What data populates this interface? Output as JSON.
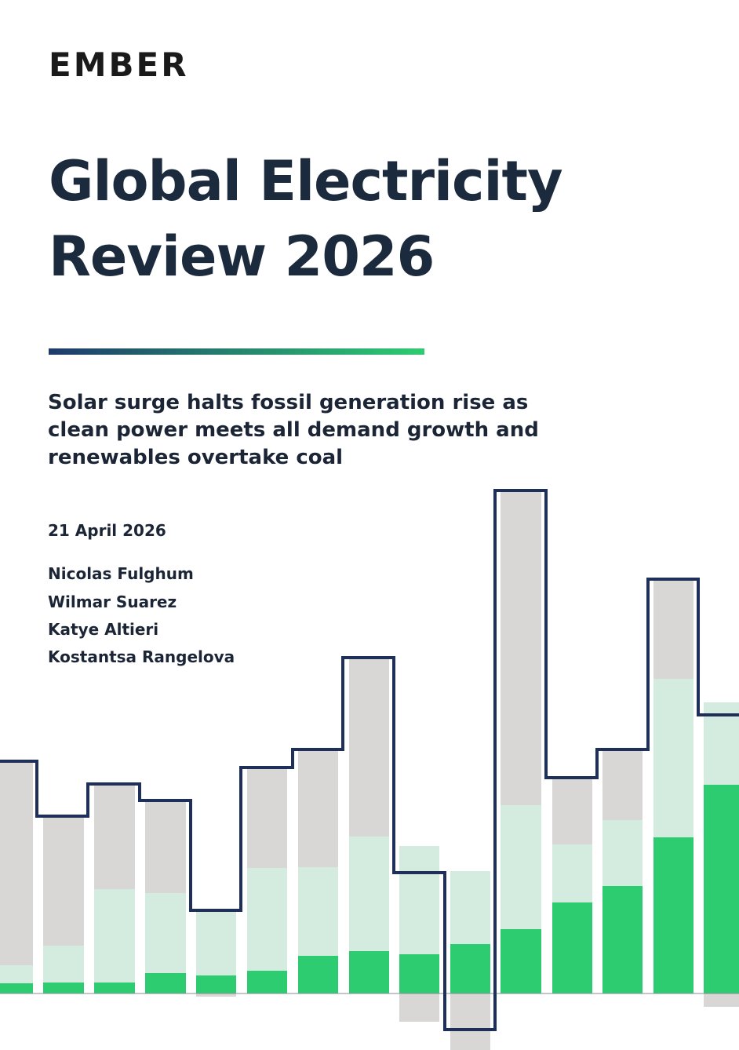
{
  "logo": "EMBER",
  "title": [
    "Global Electricity",
    "Review 2026"
  ],
  "subtitle": [
    "Solar surge halts fossil generation rise as",
    "clean power meets all demand growth and",
    "renewables overtake coal"
  ],
  "date": "21 April 2026",
  "authors": [
    "Nicolas Fulghum",
    "Wilmar Suarez",
    "Katye Altieri",
    "Kostantsa Rangelova"
  ]
}
